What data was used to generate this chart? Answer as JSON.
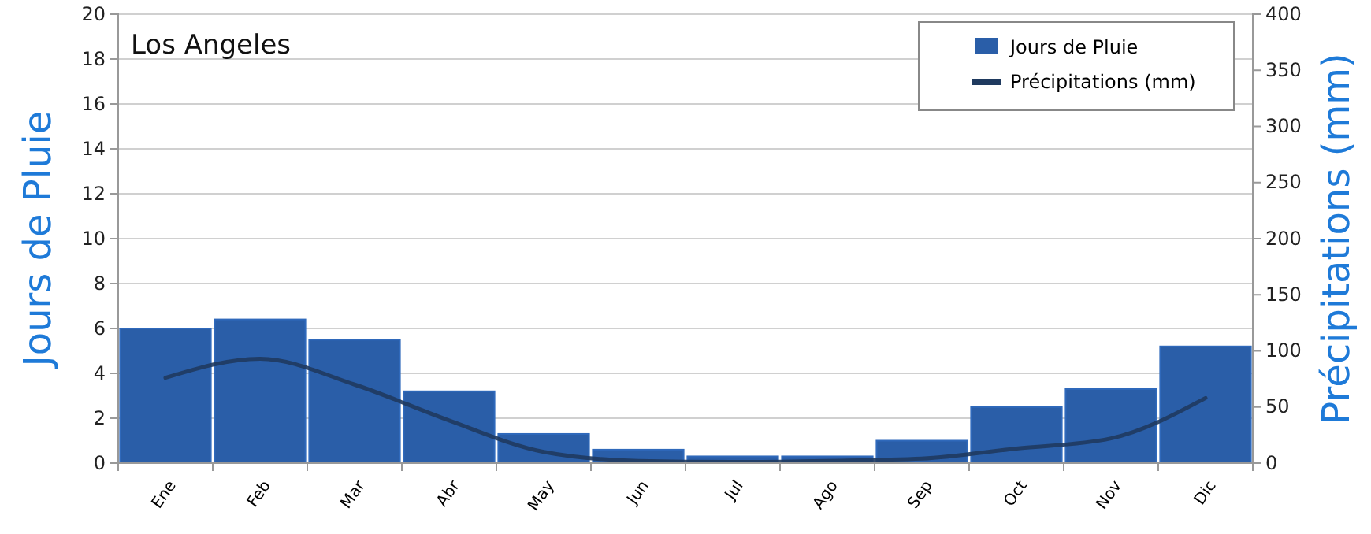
{
  "chart_data": {
    "type": "bar",
    "title": "Los Angeles",
    "ylabel": "Jours de Pluie",
    "y2label": "Précipitations (mm)",
    "categories": [
      "Ene",
      "Feb",
      "Mar",
      "Abr",
      "May",
      "Jun",
      "Jul",
      "Ago",
      "Sep",
      "Oct",
      "Nov",
      "Dic"
    ],
    "series": [
      {
        "name": "Jours de Pluie",
        "color": "#2a5ea8",
        "values": [
          6.0,
          6.4,
          5.5,
          3.2,
          1.3,
          0.6,
          0.3,
          0.3,
          1.0,
          2.5,
          3.3,
          5.2
        ]
      },
      {
        "name": "Précipitations (mm)",
        "type": "line",
        "axis": "y2",
        "color": "#1f3a5f",
        "values": [
          76,
          93,
          70,
          38,
          10,
          2,
          1,
          2,
          4,
          13,
          22,
          58
        ]
      }
    ],
    "ylim": [
      0,
      20
    ],
    "yticks": [
      0,
      2,
      4,
      6,
      8,
      10,
      12,
      14,
      16,
      18,
      20
    ],
    "y2lim": [
      0,
      400
    ],
    "y2ticks": [
      0,
      50,
      100,
      150,
      200,
      250,
      300,
      350,
      400
    ],
    "grid": "y",
    "legend": "top right"
  }
}
